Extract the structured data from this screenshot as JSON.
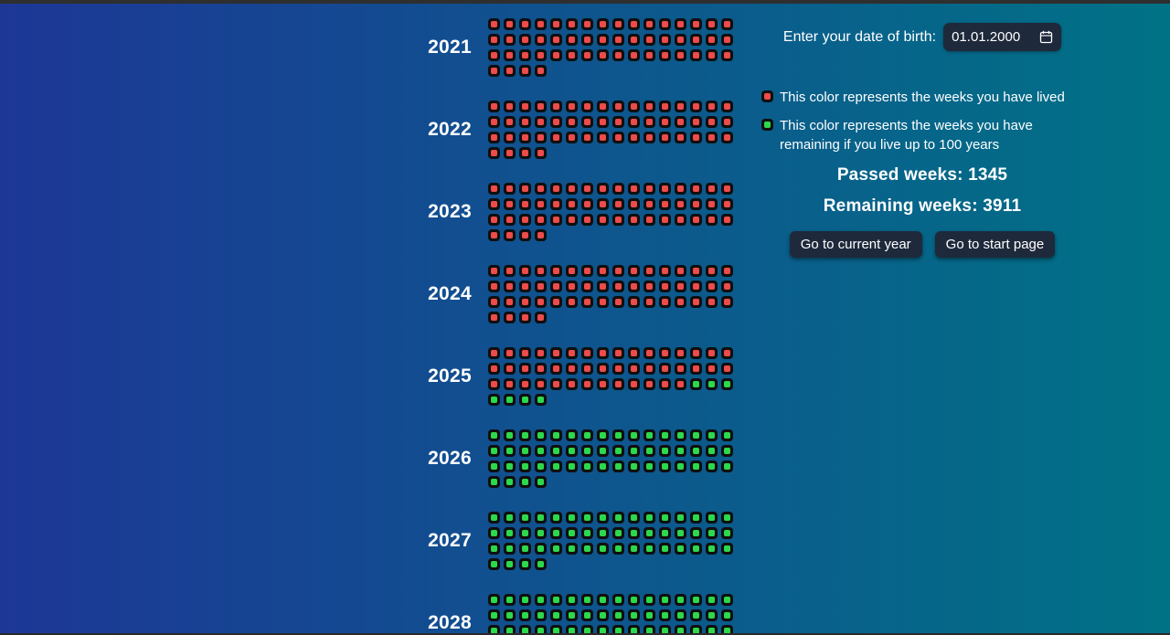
{
  "colors": {
    "bg_left": "#1d3796",
    "bg_right": "#007286",
    "lived": "#ee4b4b",
    "remaining": "#2cd94c",
    "cell_bg": "#0f0f0f",
    "panel_bg": "#1e293b"
  },
  "header": {
    "dob_label": "Enter your date of birth:",
    "dob_value": "01.01.2000"
  },
  "legend": {
    "items": [
      {
        "color": "lived",
        "text": "This color represents the weeks you have lived"
      },
      {
        "color": "remaining",
        "text": "This color represents the weeks you have remaining if you live up to 100 years"
      }
    ]
  },
  "stats": {
    "passed": "Passed weeks: 1345",
    "remaining": "Remaining weeks: 3911"
  },
  "buttons": {
    "current_year": "Go to current year",
    "start_page": "Go to start page"
  },
  "weeks_per_row": 16,
  "years": [
    {
      "label": "2021",
      "total": 52,
      "lived": 52
    },
    {
      "label": "2022",
      "total": 52,
      "lived": 52
    },
    {
      "label": "2023",
      "total": 52,
      "lived": 52
    },
    {
      "label": "2024",
      "total": 52,
      "lived": 52
    },
    {
      "label": "2025",
      "total": 52,
      "lived": 45
    },
    {
      "label": "2026",
      "total": 52,
      "lived": 0
    },
    {
      "label": "2027",
      "total": 52,
      "lived": 0
    },
    {
      "label": "2028",
      "total": 52,
      "lived": 0
    }
  ]
}
